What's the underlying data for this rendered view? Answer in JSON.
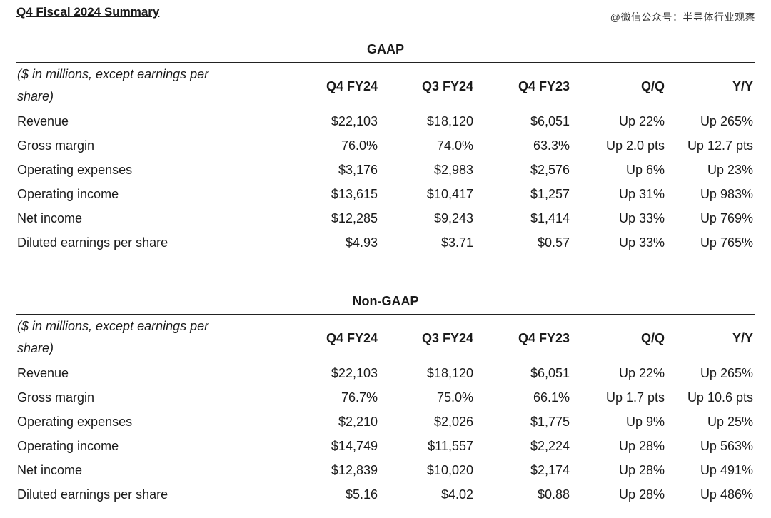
{
  "title": "Q4 Fiscal 2024 Summary",
  "watermark": "@微信公众号：半导体行业观察",
  "columns": [
    "Q4 FY24",
    "Q3 FY24",
    "Q4 FY23",
    "Q/Q",
    "Y/Y"
  ],
  "tables": [
    {
      "title": "GAAP",
      "description": "($ in millions, except earnings per share)",
      "rows": [
        {
          "label": "Revenue",
          "values": [
            "$22,103",
            "$18,120",
            "$6,051",
            "Up 22%",
            "Up 265%"
          ]
        },
        {
          "label": "Gross margin",
          "values": [
            "76.0%",
            "74.0%",
            "63.3%",
            "Up 2.0 pts",
            "Up 12.7 pts"
          ]
        },
        {
          "label": "Operating expenses",
          "values": [
            "$3,176",
            "$2,983",
            "$2,576",
            "Up 6%",
            "Up 23%"
          ]
        },
        {
          "label": "Operating income",
          "values": [
            "$13,615",
            "$10,417",
            "$1,257",
            "Up 31%",
            "Up 983%"
          ]
        },
        {
          "label": "Net income",
          "values": [
            "$12,285",
            "$9,243",
            "$1,414",
            "Up 33%",
            "Up 769%"
          ]
        },
        {
          "label": "Diluted earnings per share",
          "values": [
            "$4.93",
            "$3.71",
            "$0.57",
            "Up 33%",
            "Up 765%"
          ]
        }
      ]
    },
    {
      "title": "Non-GAAP",
      "description": "($ in millions, except earnings per share)",
      "rows": [
        {
          "label": "Revenue",
          "values": [
            "$22,103",
            "$18,120",
            "$6,051",
            "Up 22%",
            "Up 265%"
          ]
        },
        {
          "label": "Gross margin",
          "values": [
            "76.7%",
            "75.0%",
            "66.1%",
            "Up 1.7 pts",
            "Up 10.6 pts"
          ]
        },
        {
          "label": "Operating expenses",
          "values": [
            "$2,210",
            "$2,026",
            "$1,775",
            "Up 9%",
            "Up 25%"
          ]
        },
        {
          "label": "Operating income",
          "values": [
            "$14,749",
            "$11,557",
            "$2,224",
            "Up 28%",
            "Up 563%"
          ]
        },
        {
          "label": "Net income",
          "values": [
            "$12,839",
            "$10,020",
            "$2,174",
            "Up 28%",
            "Up 491%"
          ]
        },
        {
          "label": "Diluted earnings per share",
          "values": [
            "$5.16",
            "$4.02",
            "$0.88",
            "Up 28%",
            "Up 486%"
          ]
        }
      ]
    }
  ]
}
